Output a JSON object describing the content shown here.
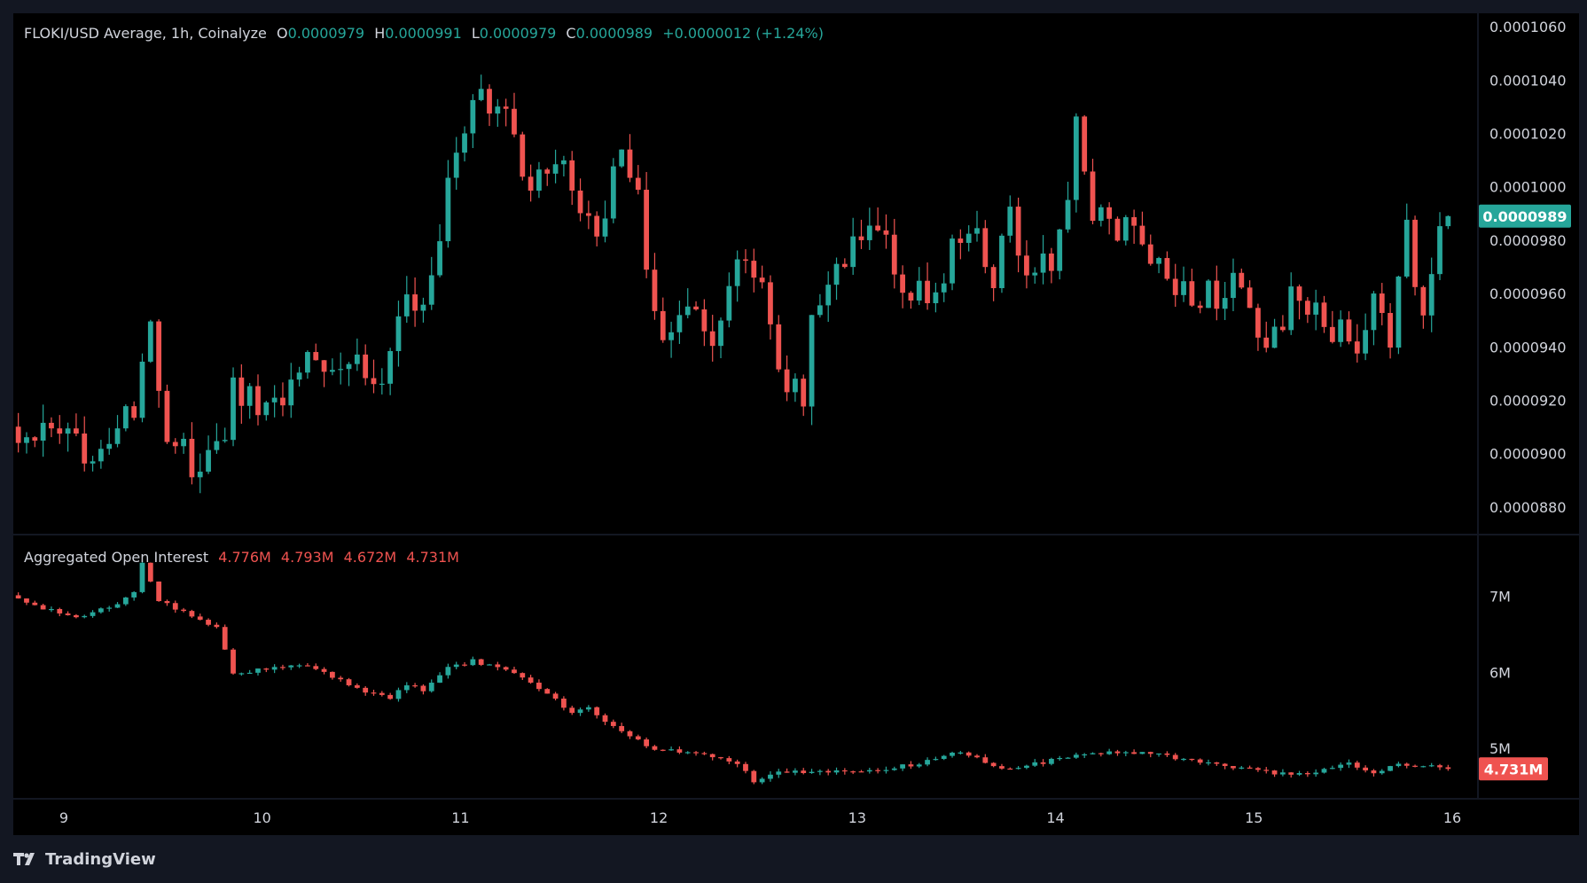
{
  "colors": {
    "background": "#131722",
    "panel": "#000000",
    "up": "#26a69a",
    "down": "#ef5350",
    "text": "#d1d4dc",
    "border": "#2a2e39"
  },
  "header": {
    "symbol": "FLOKI/USD Average, 1h, Coinalyze",
    "o_label": "O",
    "o_value": "0.0000979",
    "h_label": "H",
    "h_value": "0.0000991",
    "l_label": "L",
    "l_value": "0.0000979",
    "c_label": "C",
    "c_value": "0.0000989",
    "change": "+0.0000012 (+1.24%)"
  },
  "oi_header": {
    "title": "Aggregated Open Interest",
    "v1": "4.776M",
    "v2": "4.793M",
    "v3": "4.672M",
    "v4": "4.731M"
  },
  "brand": {
    "name": "TradingView",
    "logo_icon": "tradingview-logo-icon"
  },
  "chart_data": [
    {
      "type": "candlestick",
      "title": "FLOKI/USD Average, 1h, Coinalyze",
      "interval": "1h",
      "price_axis": {
        "range": [
          8.7e-05,
          0.0001065
        ],
        "ticks": [
          "0.0001060",
          "0.0001040",
          "0.0001020",
          "0.0001000",
          "0.0000980",
          "0.0000960",
          "0.0000940",
          "0.0000920",
          "0.0000900",
          "0.0000880"
        ],
        "tick_values": [
          0.000106,
          0.000104,
          0.000102,
          0.0001,
          9.8e-05,
          9.6e-05,
          9.4e-05,
          9.2e-05,
          9e-05,
          8.8e-05
        ],
        "last_value": 9.89e-05,
        "last_label": "0.0000989"
      },
      "time_axis": {
        "ticks": [
          "9",
          "10",
          "11",
          "12",
          "13",
          "14",
          "15",
          "16"
        ],
        "tick_index": [
          6,
          30,
          54,
          78,
          102,
          126,
          150,
          174
        ],
        "bar_count": 174
      },
      "anchors": [
        [
          0,
          9.08e-05
        ],
        [
          4,
          9.07e-05
        ],
        [
          8,
          9.02e-05
        ],
        [
          12,
          9.05e-05
        ],
        [
          15,
          9.15e-05
        ],
        [
          17,
          9.44e-05
        ],
        [
          19,
          9.08e-05
        ],
        [
          22,
          8.96e-05
        ],
        [
          26,
          9.01e-05
        ],
        [
          27,
          9.25e-05
        ],
        [
          32,
          9.17e-05
        ],
        [
          35,
          9.35e-05
        ],
        [
          41,
          9.38e-05
        ],
        [
          45,
          9.25e-05
        ],
        [
          47,
          9.55e-05
        ],
        [
          51,
          9.62e-05
        ],
        [
          53,
          9.98e-05
        ],
        [
          56,
          0.0001035
        ],
        [
          61,
          0.0001022
        ],
        [
          63,
          9.98e-05
        ],
        [
          66,
          0.0001012
        ],
        [
          68,
          9.99e-05
        ],
        [
          71,
          9.85e-05
        ],
        [
          74,
          0.0001012
        ],
        [
          76,
          9.95e-05
        ],
        [
          78,
          9.55e-05
        ],
        [
          80,
          9.4e-05
        ],
        [
          83,
          9.58e-05
        ],
        [
          85,
          9.4e-05
        ],
        [
          88,
          9.7e-05
        ],
        [
          91,
          9.6e-05
        ],
        [
          93,
          9.28e-05
        ],
        [
          96,
          9.2e-05
        ],
        [
          97,
          9.55e-05
        ],
        [
          101,
          9.72e-05
        ],
        [
          105,
          9.88e-05
        ],
        [
          108,
          9.65e-05
        ],
        [
          112,
          9.55e-05
        ],
        [
          114,
          9.83e-05
        ],
        [
          117,
          9.78e-05
        ],
        [
          119,
          9.66e-05
        ],
        [
          121,
          9.93e-05
        ],
        [
          123,
          9.63e-05
        ],
        [
          127,
          9.78e-05
        ],
        [
          129,
          0.0001022
        ],
        [
          131,
          9.92e-05
        ],
        [
          134,
          9.85e-05
        ],
        [
          137,
          9.8e-05
        ],
        [
          140,
          9.64e-05
        ],
        [
          145,
          9.6e-05
        ],
        [
          148,
          9.62e-05
        ],
        [
          152,
          9.4e-05
        ],
        [
          155,
          9.57e-05
        ],
        [
          158,
          9.52e-05
        ],
        [
          160,
          9.45e-05
        ],
        [
          163,
          9.42e-05
        ],
        [
          165,
          9.62e-05
        ],
        [
          167,
          9.4e-05
        ],
        [
          169,
          9.82e-05
        ],
        [
          171,
          9.55e-05
        ],
        [
          173,
          9.79e-05
        ],
        [
          174,
          9.89e-05
        ]
      ]
    },
    {
      "type": "candlestick",
      "title": "Aggregated Open Interest",
      "axis": {
        "range": [
          4.35,
          7.8
        ],
        "ticks": [
          "7M",
          "6M",
          "5M"
        ],
        "tick_values": [
          7,
          6,
          5
        ],
        "unit": "M",
        "last_value": 4.731,
        "last_label": "4.731M"
      },
      "anchors": [
        [
          0,
          7.0
        ],
        [
          4,
          6.85
        ],
        [
          8,
          6.72
        ],
        [
          12,
          6.85
        ],
        [
          15,
          7.05
        ],
        [
          16,
          7.45
        ],
        [
          18,
          6.95
        ],
        [
          22,
          6.75
        ],
        [
          25,
          6.6
        ],
        [
          27,
          6.0
        ],
        [
          32,
          6.05
        ],
        [
          35,
          6.1
        ],
        [
          39,
          5.95
        ],
        [
          43,
          5.75
        ],
        [
          46,
          5.65
        ],
        [
          48,
          5.85
        ],
        [
          50,
          5.75
        ],
        [
          53,
          6.05
        ],
        [
          56,
          6.15
        ],
        [
          59,
          6.05
        ],
        [
          62,
          5.95
        ],
        [
          66,
          5.65
        ],
        [
          68,
          5.45
        ],
        [
          70,
          5.55
        ],
        [
          72,
          5.35
        ],
        [
          75,
          5.15
        ],
        [
          78,
          5.0
        ],
        [
          82,
          4.95
        ],
        [
          85,
          4.9
        ],
        [
          88,
          4.8
        ],
        [
          90,
          4.58
        ],
        [
          93,
          4.7
        ],
        [
          100,
          4.7
        ],
        [
          105,
          4.72
        ],
        [
          110,
          4.8
        ],
        [
          115,
          4.95
        ],
        [
          118,
          4.82
        ],
        [
          120,
          4.73
        ],
        [
          125,
          4.82
        ],
        [
          130,
          4.92
        ],
        [
          135,
          4.95
        ],
        [
          140,
          4.9
        ],
        [
          145,
          4.8
        ],
        [
          150,
          4.72
        ],
        [
          155,
          4.65
        ],
        [
          158,
          4.7
        ],
        [
          162,
          4.82
        ],
        [
          165,
          4.65
        ],
        [
          168,
          4.8
        ],
        [
          171,
          4.78
        ],
        [
          174,
          4.731
        ]
      ]
    }
  ]
}
